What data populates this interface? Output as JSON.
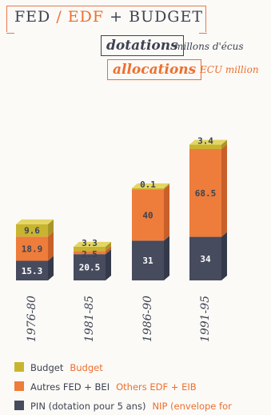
{
  "header": {
    "title_fed": "FED",
    "title_slash": "/",
    "title_edf": "EDF",
    "title_budget": "+ BUDGET",
    "dotations": "dotations",
    "dotations_unit": "millons d'écus",
    "allocations": "allocations",
    "allocations_unit": "ECU million"
  },
  "legend": [
    {
      "fr": "Budget",
      "en": "Budget",
      "color": "#c8b52f"
    },
    {
      "fr": "Autres FED + BEI",
      "en": "Others EDF + EIB",
      "color": "#ee7c3b"
    },
    {
      "fr": "PIN (dotation pour 5 ans)",
      "en": "NIP (envelope for",
      "color": "#464b5e"
    }
  ],
  "chart_data": {
    "type": "bar",
    "stacked": true,
    "categories": [
      "1976-80",
      "1981-85",
      "1986-90",
      "1991-95"
    ],
    "series": [
      {
        "name": "PIN (dotation pour 5 ans)",
        "values": [
          15.3,
          20.5,
          31,
          34
        ],
        "labels": [
          "15.3",
          "20.5",
          "31",
          "34"
        ],
        "color": "#464b5e"
      },
      {
        "name": "Autres FED + BEI",
        "values": [
          18.9,
          2.5,
          40,
          68.5
        ],
        "labels": [
          "18.9",
          "2.5",
          "40",
          "68.5"
        ],
        "color": "#ee7c3b"
      },
      {
        "name": "Budget",
        "values": [
          9.6,
          3.3,
          0.1,
          3.4
        ],
        "labels": [
          "9.6",
          "3.3",
          "0.1",
          "3.4"
        ],
        "color": "#c8b52f"
      }
    ]
  }
}
